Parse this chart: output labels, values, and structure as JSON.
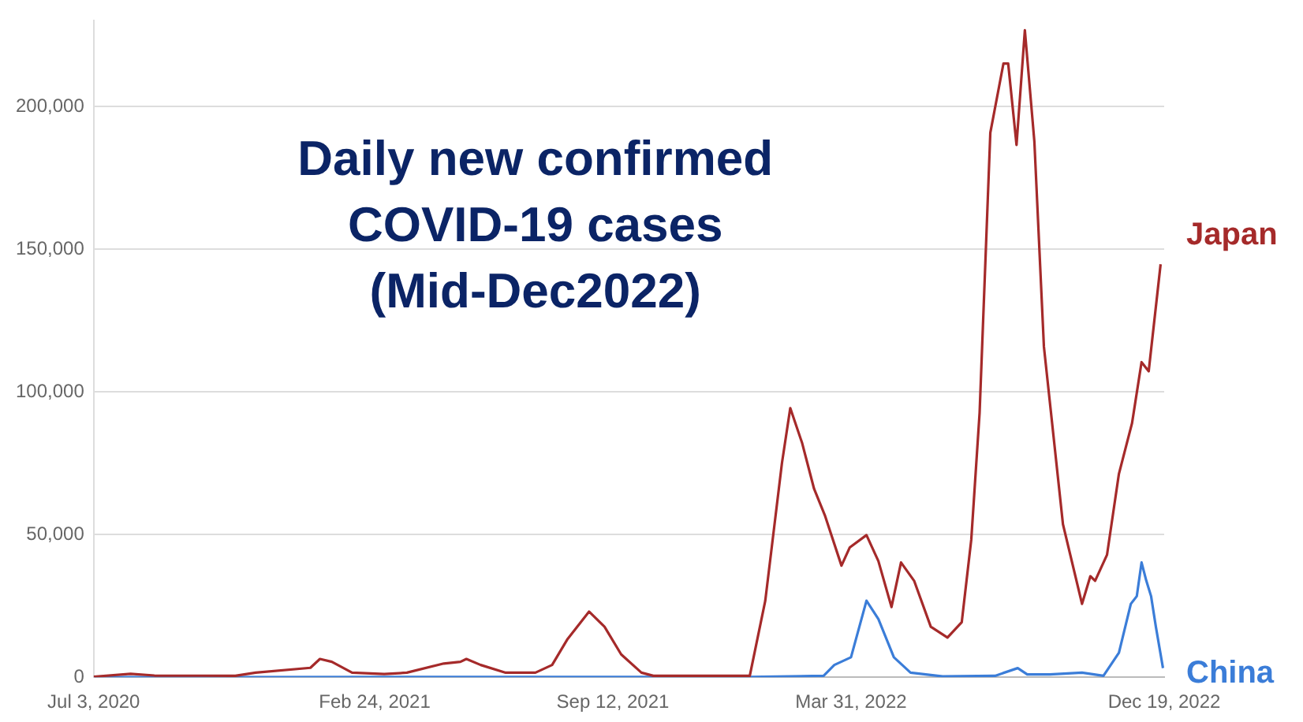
{
  "chart_data": {
    "type": "line",
    "title": "Daily new confirmed\nCOVID-19 cases\n(Mid-Dec2022)",
    "xlim": [
      "2020-07-03",
      "2022-12-19"
    ],
    "xticks": [
      {
        "value": "2020-07-03",
        "label": "Jul 3, 2020"
      },
      {
        "value": "2021-02-24",
        "label": "Feb 24, 2021"
      },
      {
        "value": "2021-09-12",
        "label": "Sep 12, 2021"
      },
      {
        "value": "2022-03-31",
        "label": "Mar 31, 2022"
      },
      {
        "value": "2022-12-19",
        "label": "Dec 19, 2022"
      }
    ],
    "ylim": [
      0,
      230000
    ],
    "yticks": [
      {
        "value": 0,
        "label": "0"
      },
      {
        "value": 50000,
        "label": "50,000"
      },
      {
        "value": 100000,
        "label": "100,000"
      },
      {
        "value": 150000,
        "label": "150,000"
      },
      {
        "value": 200000,
        "label": "200,000"
      }
    ],
    "grid": "y",
    "legend": false,
    "marker": "none",
    "line_style": "solid",
    "series": [
      {
        "name": "Japan",
        "color": "#a52a2a",
        "x": [
          "2020-07-03",
          "2020-08-03",
          "2020-08-23",
          "2020-10-30",
          "2020-11-16",
          "2021-01-01",
          "2021-01-09",
          "2021-01-19",
          "2021-02-05",
          "2021-03-04",
          "2021-03-23",
          "2021-04-23",
          "2021-05-07",
          "2021-05-12",
          "2021-05-24",
          "2021-06-14",
          "2021-07-09",
          "2021-07-23",
          "2021-08-05",
          "2021-08-23",
          "2021-09-05",
          "2021-09-19",
          "2021-10-06",
          "2021-10-16",
          "2022-01-05",
          "2022-01-18",
          "2022-02-01",
          "2022-02-08",
          "2022-02-18",
          "2022-02-28",
          "2022-03-09",
          "2022-03-23",
          "2022-03-30",
          "2022-04-13",
          "2022-04-23",
          "2022-05-04",
          "2022-05-12",
          "2022-05-23",
          "2022-06-06",
          "2022-06-20",
          "2022-07-02",
          "2022-07-10",
          "2022-07-17",
          "2022-07-26",
          "2022-08-06",
          "2022-08-10",
          "2022-08-17",
          "2022-08-24",
          "2022-09-01",
          "2022-09-09",
          "2022-09-25",
          "2022-10-11",
          "2022-10-18",
          "2022-10-22",
          "2022-11-01",
          "2022-11-11",
          "2022-11-22",
          "2022-11-30",
          "2022-12-06",
          "2022-12-16"
        ],
        "values": [
          200,
          1200,
          600,
          500,
          1600,
          3300,
          6400,
          5400,
          1600,
          1100,
          1600,
          4800,
          5400,
          6400,
          4300,
          1600,
          1600,
          4300,
          13400,
          23000,
          17700,
          8000,
          1600,
          500,
          500,
          26800,
          75000,
          94300,
          82000,
          66000,
          56800,
          39100,
          45500,
          49800,
          40700,
          24600,
          40200,
          33800,
          17700,
          13900,
          19300,
          48200,
          92700,
          190800,
          215000,
          215000,
          186500,
          226700,
          187600,
          115800,
          53600,
          25700,
          35400,
          33800,
          42900,
          71300,
          89000,
          110400,
          107200,
          144700
        ]
      },
      {
        "name": "China",
        "color": "#3b7dd8",
        "x": [
          "2020-07-03",
          "2021-06-01",
          "2022-01-05",
          "2022-03-08",
          "2022-03-17",
          "2022-03-31",
          "2022-04-13",
          "2022-04-23",
          "2022-05-06",
          "2022-05-20",
          "2022-06-16",
          "2022-07-30",
          "2022-08-18",
          "2022-08-26",
          "2022-09-14",
          "2022-10-11",
          "2022-10-29",
          "2022-11-11",
          "2022-11-21",
          "2022-11-26",
          "2022-11-30",
          "2022-12-04",
          "2022-12-08",
          "2022-12-12",
          "2022-12-18"
        ],
        "values": [
          0,
          100,
          100,
          500,
          4300,
          7000,
          26800,
          20400,
          7000,
          1600,
          300,
          500,
          3200,
          1000,
          1000,
          1600,
          500,
          8600,
          25700,
          28400,
          40200,
          33800,
          28400,
          17700,
          3200
        ]
      }
    ]
  }
}
